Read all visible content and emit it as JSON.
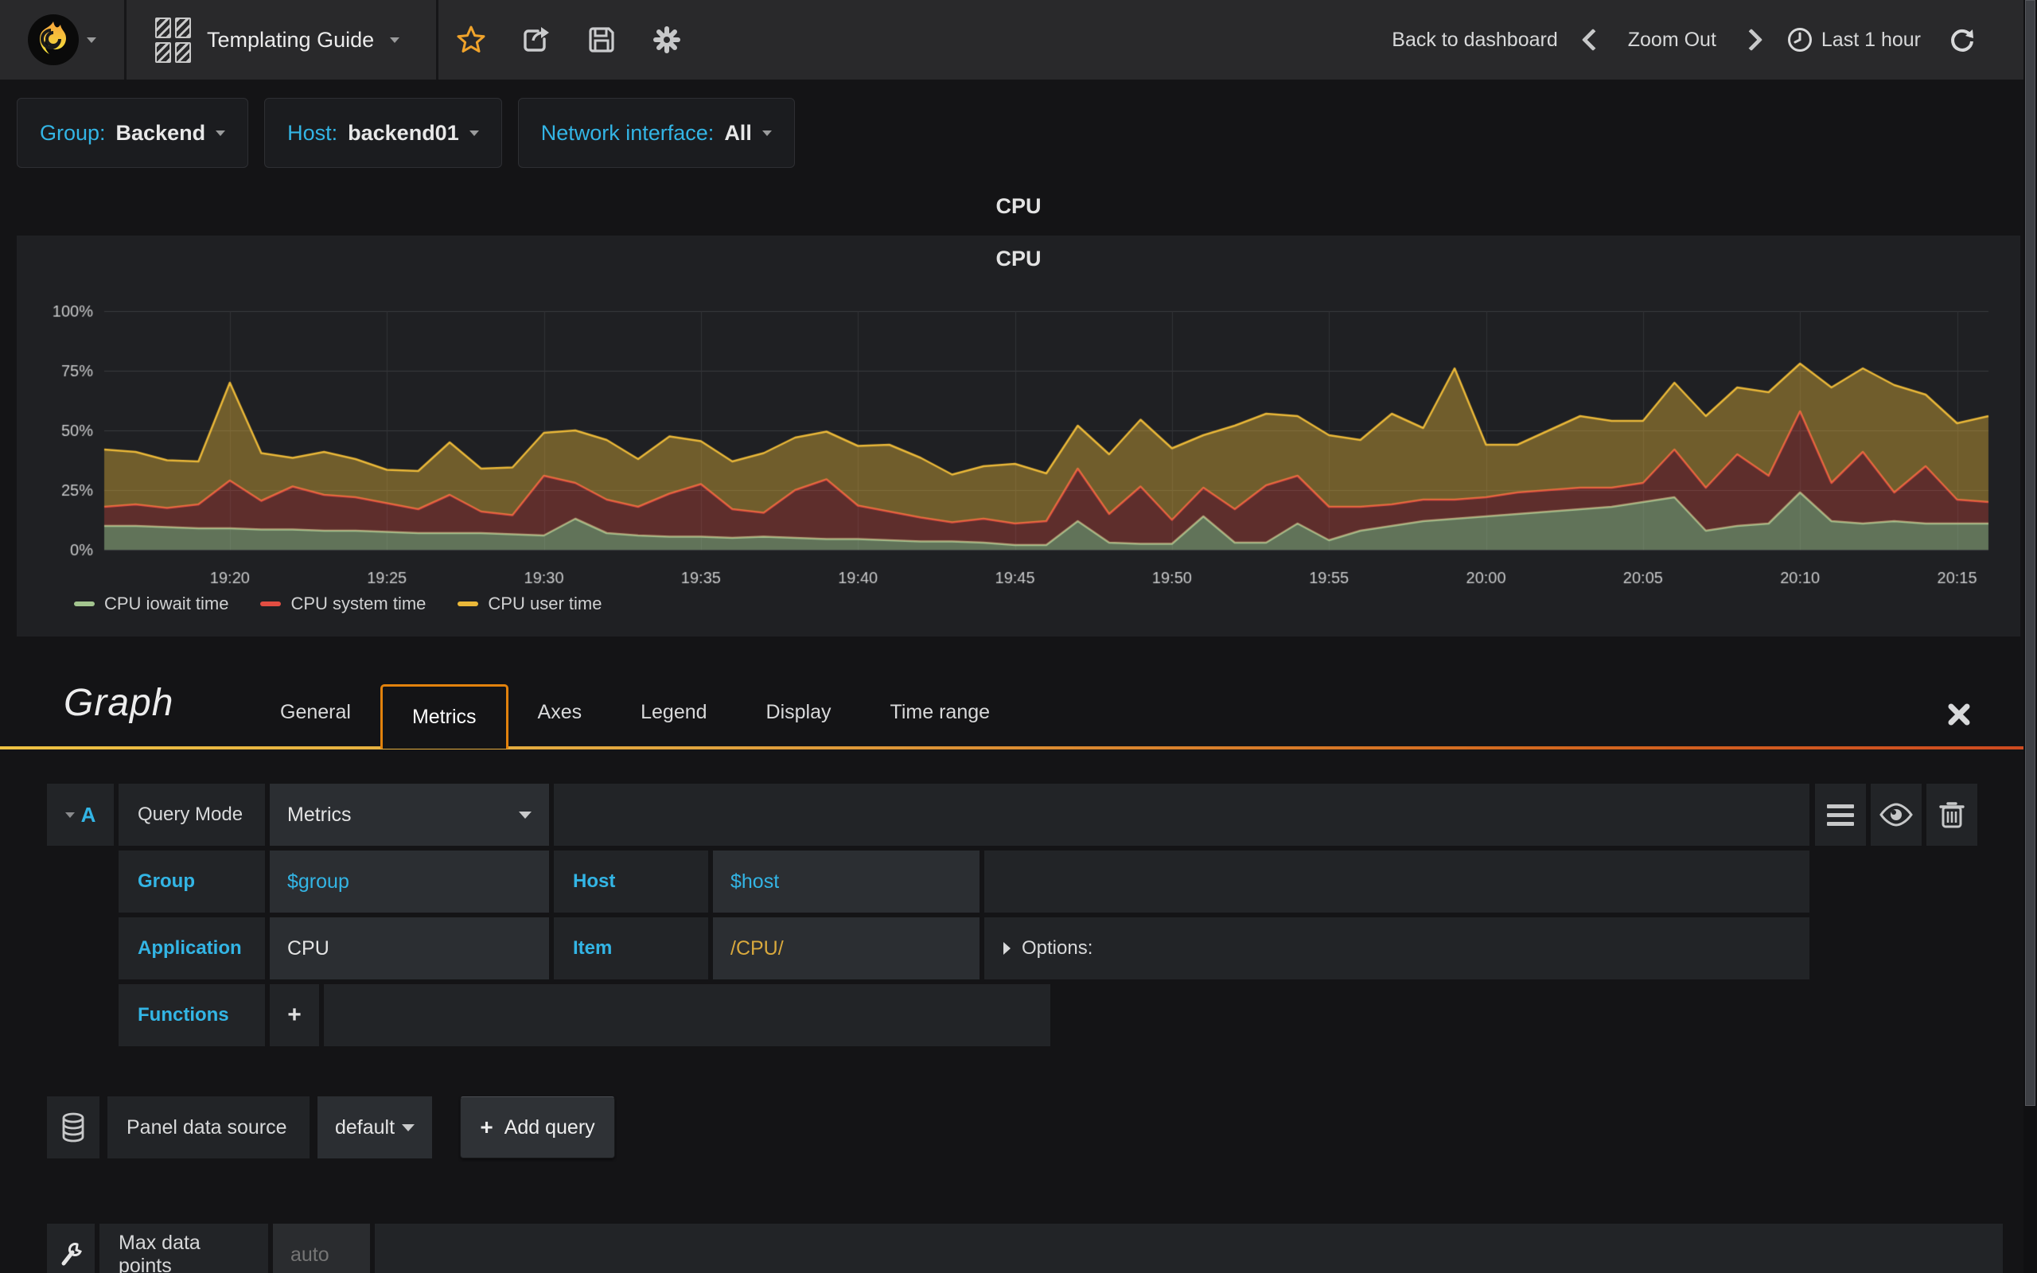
{
  "topbar": {
    "title": "Templating Guide",
    "back_label": "Back to dashboard",
    "zoom_out_label": "Zoom Out",
    "time_range_label": "Last 1 hour"
  },
  "variables": [
    {
      "label": "Group:",
      "value": "Backend"
    },
    {
      "label": "Host:",
      "value": "backend01"
    },
    {
      "label": "Network interface:",
      "value": "All"
    }
  ],
  "panel": {
    "header_title": "CPU",
    "graph_title": "CPU"
  },
  "chart_data": {
    "type": "area",
    "stacked": true,
    "title": "CPU",
    "xlabel": "",
    "ylabel": "percent",
    "ylim": [
      0,
      100
    ],
    "y_ticks": [
      "0%",
      "25%",
      "50%",
      "75%",
      "100%"
    ],
    "grid": true,
    "legend_position": "bottom-left",
    "time_start": "19:16",
    "time_end": "20:16",
    "total_minutes": 60,
    "step_minutes": 1,
    "x_ticks": [
      {
        "m": 4,
        "label": "19:20"
      },
      {
        "m": 9,
        "label": "19:25"
      },
      {
        "m": 14,
        "label": "19:30"
      },
      {
        "m": 19,
        "label": "19:35"
      },
      {
        "m": 24,
        "label": "19:40"
      },
      {
        "m": 29,
        "label": "19:45"
      },
      {
        "m": 34,
        "label": "19:50"
      },
      {
        "m": 39,
        "label": "19:55"
      },
      {
        "m": 44,
        "label": "20:00"
      },
      {
        "m": 49,
        "label": "20:05"
      },
      {
        "m": 54,
        "label": "20:10"
      },
      {
        "m": 59,
        "label": "20:15"
      }
    ],
    "series": [
      {
        "name": "CPU iowait time",
        "color": "#A3C58F",
        "fill_alpha": 0.5,
        "values": [
          10,
          10,
          9.5,
          9,
          9,
          8.5,
          8.5,
          8,
          8,
          7.5,
          7,
          7,
          7,
          6.5,
          6,
          13,
          7,
          6,
          5.5,
          5.5,
          5,
          5.5,
          5,
          4.5,
          4.5,
          4,
          3.5,
          3.5,
          3,
          2,
          2,
          12,
          3,
          2.5,
          2.5,
          14,
          3,
          3,
          11,
          4,
          8,
          10,
          12,
          13,
          14,
          15,
          16,
          17,
          18,
          20,
          22,
          8,
          10,
          11,
          24,
          12,
          11,
          12,
          11,
          11,
          11
        ]
      },
      {
        "name": "CPU system time",
        "color": "#E24D42",
        "fill_alpha": 0.32,
        "values": [
          8,
          9,
          8,
          10,
          20,
          12,
          18,
          15,
          14,
          12,
          10,
          16,
          9,
          8,
          25,
          15,
          14,
          12,
          18,
          22,
          12,
          10,
          20,
          25,
          14,
          12,
          10,
          8,
          10,
          9,
          10,
          22,
          12,
          24,
          10,
          12,
          14,
          24,
          20,
          14,
          10,
          9,
          9,
          8,
          8,
          9,
          9,
          9,
          8,
          8,
          20,
          18,
          30,
          20,
          34,
          16,
          30,
          12,
          24,
          10,
          9
        ]
      },
      {
        "name": "CPU user time",
        "color": "#EAB839",
        "fill_alpha": 0.4,
        "values": [
          24,
          22,
          20,
          18,
          41,
          20,
          12,
          18,
          16,
          14,
          16,
          22,
          18,
          20,
          18,
          22,
          25,
          20,
          24,
          18,
          20,
          25,
          22,
          20,
          25,
          28,
          25,
          20,
          22,
          25,
          20,
          18,
          25,
          28,
          30,
          22,
          35,
          30,
          25,
          30,
          28,
          38,
          30,
          55,
          22,
          20,
          25,
          30,
          28,
          26,
          28,
          30,
          28,
          35,
          20,
          40,
          35,
          45,
          30,
          32,
          36
        ]
      }
    ]
  },
  "editor": {
    "panel_type_title": "Graph",
    "active_tab": "Metrics",
    "tabs": [
      {
        "label": "General"
      },
      {
        "label": "Metrics"
      },
      {
        "label": "Axes"
      },
      {
        "label": "Legend"
      },
      {
        "label": "Display"
      },
      {
        "label": "Time range"
      }
    ],
    "query": {
      "letter": "A",
      "mode_label": "Query Mode",
      "mode_value": "Metrics",
      "group_label": "Group",
      "group_value": "$group",
      "host_label": "Host",
      "host_value": "$host",
      "application_label": "Application",
      "application_value": "CPU",
      "item_label": "Item",
      "item_value": "/CPU/",
      "options_label": "Options:",
      "functions_label": "Functions",
      "add_function_label": "+"
    },
    "datasource": {
      "label": "Panel data source",
      "value": "default",
      "add_query_label": "Add query",
      "add_query_plus": "+"
    },
    "footer": {
      "max_data_points_label": "Max data points",
      "max_data_points_placeholder": "auto"
    }
  },
  "colors": {
    "accent_cyan": "#33b5e5",
    "item_orange": "#d9a93d",
    "tab_border_orange": "#e2820d",
    "star_orange": "#f0a32b"
  }
}
